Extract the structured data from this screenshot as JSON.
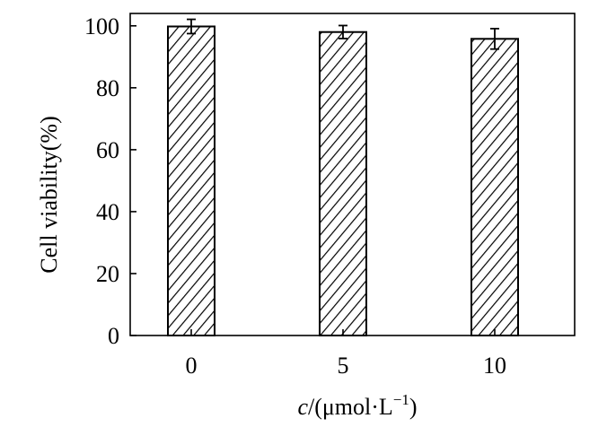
{
  "chart_data": {
    "type": "bar",
    "categories": [
      "0",
      "5",
      "10"
    ],
    "values": [
      99.8,
      98.0,
      95.8
    ],
    "errors": [
      2.3,
      2.1,
      3.3
    ],
    "xlabel_italic": "c",
    "xlabel_rest": "/(μmol·L",
    "xlabel_sup": "−1",
    "xlabel_close": ")",
    "ylabel": "Cell viability(%)",
    "ylim": [
      0,
      104
    ],
    "yticks": [
      0,
      20,
      40,
      60,
      80,
      100
    ],
    "grid": false,
    "bar_fill": "hatched",
    "colors": {
      "ink": "#000000",
      "background": "#ffffff"
    }
  }
}
